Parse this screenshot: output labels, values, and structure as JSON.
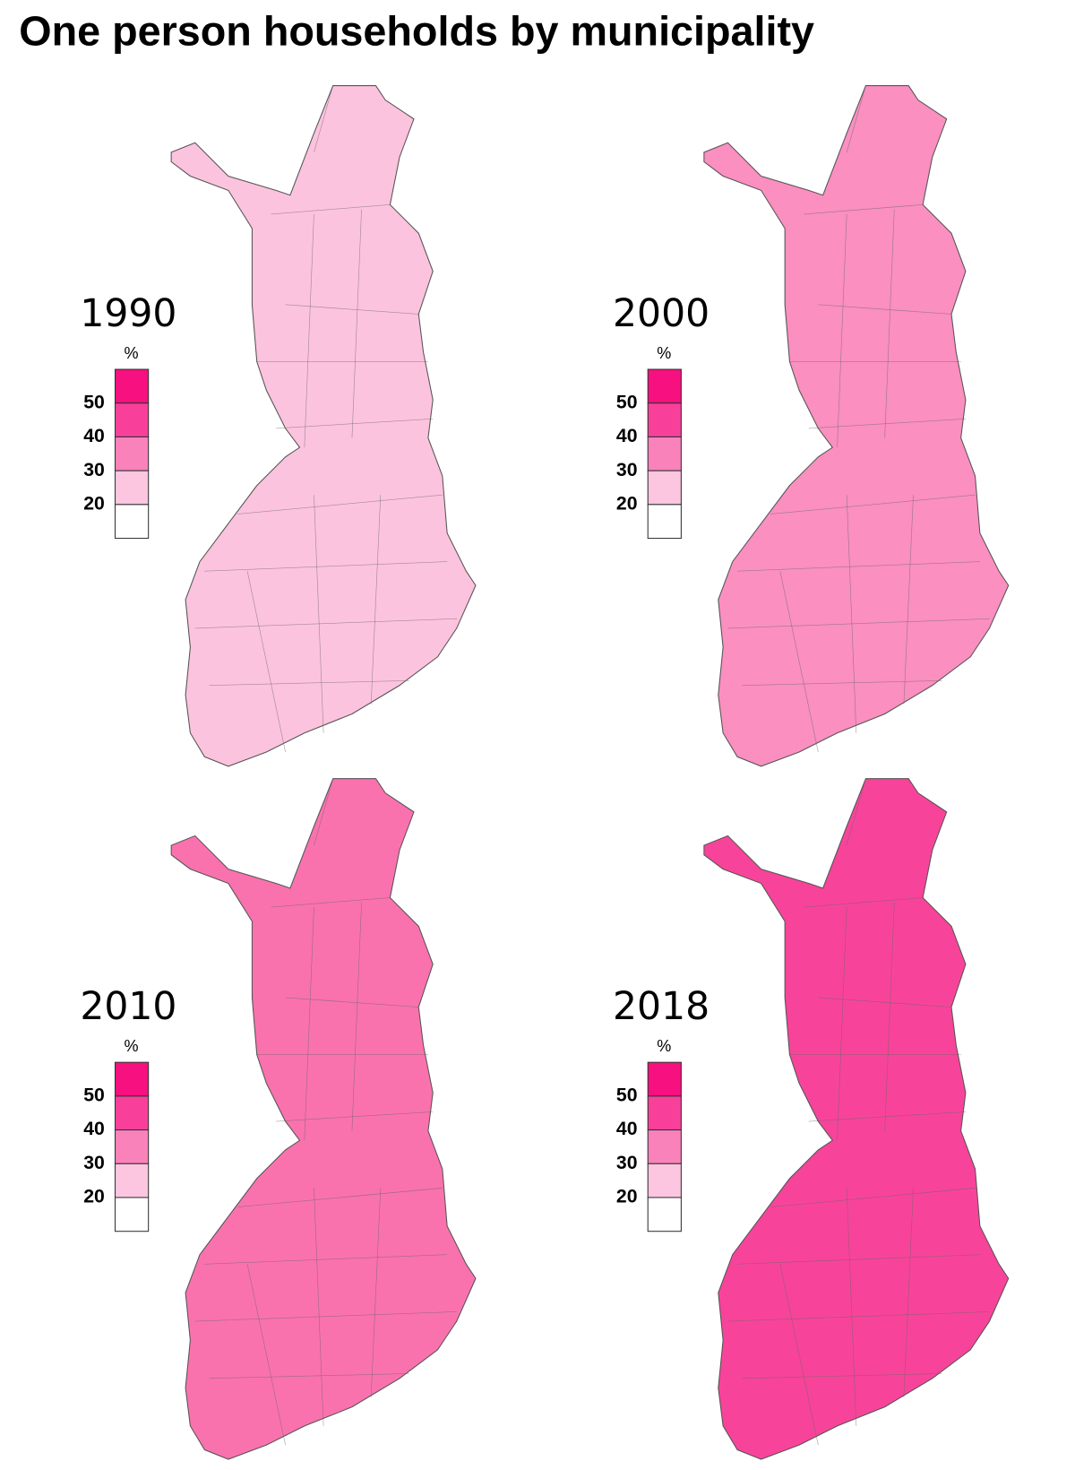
{
  "title": "One person households by municipality",
  "maps": [
    {
      "year": "1990",
      "color": "#fcc3de"
    },
    {
      "year": "2000",
      "color": "#fa8fc0"
    },
    {
      "year": "2010",
      "color": "#f972ae"
    },
    {
      "year": "2018",
      "color": "#f7449a"
    }
  ],
  "legend": {
    "unit": "%",
    "ticks": [
      50,
      40,
      30,
      20
    ],
    "colors": [
      "#f7107f",
      "#f8409a",
      "#fa82bb",
      "#fdc6e0",
      "#ffffff"
    ]
  }
}
